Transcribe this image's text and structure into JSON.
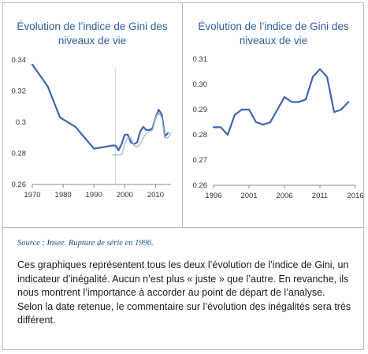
{
  "source": "Source : Insee. Rupture de série en 1996.",
  "paragraph": "Ces graphiques représentent tous les deux l’évolution de l’indice de Gini, un indicateur d’inégalité. Aucun n’est plus « juste » que l’autre. En revanche, ils nous montrent l’importance à accorder au point de départ de l’analyse. Selon la date retenue, le commentaire sur l’évolution des inégalités sera très différent.",
  "chart_data": [
    {
      "type": "line",
      "title": "Évolution de l’indice de Gini des niveaux de vie",
      "xlim": [
        1970,
        2015
      ],
      "ylim": [
        0.26,
        0.34
      ],
      "xticks": [
        "1970",
        "1980",
        "1990",
        "2000",
        "2010"
      ],
      "yticks": [
        "0.34",
        "0.32",
        "0.3",
        "0.28",
        "0.26"
      ],
      "grid": false,
      "color": "#3f65ad",
      "series": [
        {
          "x": [
            1970,
            1975,
            1979,
            1984,
            1990,
            1996,
            1997,
            1998,
            1999,
            2000,
            2001,
            2002,
            2003,
            2004,
            2005,
            2006,
            2007,
            2008,
            2009,
            2010,
            2011,
            2012,
            2013,
            2014
          ],
          "values": [
            0.337,
            0.323,
            0.303,
            0.297,
            0.283,
            0.285,
            0.285,
            0.282,
            0.286,
            0.292,
            0.292,
            0.287,
            0.286,
            0.287,
            0.294,
            0.297,
            0.295,
            0.295,
            0.296,
            0.303,
            0.308,
            0.305,
            0.291,
            0.293
          ]
        },
        {
          "x": [
            1996,
            1997,
            1998,
            1999,
            2000,
            2001,
            2002,
            2003,
            2004,
            2005,
            2006,
            2007,
            2008,
            2009,
            2010,
            2011,
            2012,
            2013,
            2014,
            2015
          ],
          "values": [
            0.279,
            0.279,
            0.279,
            0.279,
            0.286,
            0.29,
            0.29,
            0.285,
            0.284,
            0.286,
            0.29,
            0.293,
            0.294,
            0.295,
            0.303,
            0.306,
            0.303,
            0.29,
            0.29,
            0.293
          ],
          "style": "faint"
        }
      ]
    },
    {
      "type": "line",
      "title": "Évolution de l’indice de Gini des niveaux de vie",
      "xlim": [
        1996,
        2016
      ],
      "ylim": [
        0.26,
        0.31
      ],
      "xticks": [
        "1996",
        "2001",
        "2006",
        "2011",
        "2016"
      ],
      "yticks": [
        "0.31",
        "0.30",
        "0.29",
        "0.28",
        "0.27",
        "0.26"
      ],
      "grid": false,
      "color": "#3f65ad",
      "series": [
        {
          "x": [
            1996,
            1997,
            1998,
            1999,
            2000,
            2001,
            2002,
            2003,
            2004,
            2005,
            2006,
            2007,
            2008,
            2009,
            2010,
            2011,
            2012,
            2013,
            2014,
            2015
          ],
          "values": [
            0.283,
            0.283,
            0.28,
            0.288,
            0.29,
            0.29,
            0.285,
            0.284,
            0.285,
            0.29,
            0.295,
            0.293,
            0.293,
            0.294,
            0.303,
            0.306,
            0.303,
            0.289,
            0.29,
            0.293
          ]
        }
      ]
    }
  ]
}
